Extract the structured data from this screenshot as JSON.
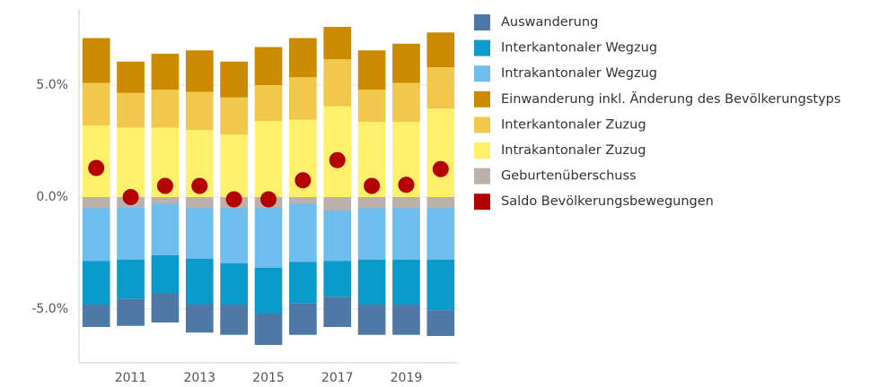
{
  "chart_data": {
    "type": "bar",
    "stacked": true,
    "categories": [
      null,
      "2011",
      null,
      "2013",
      null,
      "2015",
      null,
      "2017",
      null,
      "2019",
      null
    ],
    "ylim": [
      -7.4,
      8.4
    ],
    "yticks": [
      {
        "value": -5,
        "label": "-5.0%"
      },
      {
        "value": 0,
        "label": "0.0%"
      },
      {
        "value": 5,
        "label": "5.0%"
      }
    ],
    "grid": true,
    "legend": "right",
    "series": [
      {
        "name": "Auswanderung",
        "color": "#4e79a7",
        "values": [
          -1.0,
          -1.2,
          -1.3,
          -1.25,
          -1.35,
          -1.4,
          -1.4,
          -1.35,
          -1.35,
          -1.35,
          -1.15
        ]
      },
      {
        "name": "Interkantonaler Wegzug",
        "color": "#0a9bcb",
        "values": [
          -1.95,
          -1.75,
          -1.7,
          -2.05,
          -1.85,
          -2.05,
          -1.85,
          -1.6,
          -2.0,
          -2.0,
          -2.25
        ]
      },
      {
        "name": "Intrakantonaler Wegzug",
        "color": "#6dbdee",
        "values": [
          -2.35,
          -2.35,
          -2.3,
          -2.25,
          -2.45,
          -2.65,
          -2.6,
          -2.25,
          -2.3,
          -2.3,
          -2.3
        ]
      },
      {
        "name": "Einwanderung inkl. Änderung des Bevölkerungstyps",
        "color": "#cc8a00",
        "values": [
          2.0,
          1.4,
          1.6,
          1.85,
          1.6,
          1.7,
          1.75,
          1.45,
          1.75,
          1.75,
          1.55
        ]
      },
      {
        "name": "Interkantonaler Zuzug",
        "color": "#f1c84b",
        "values": [
          1.9,
          1.55,
          1.7,
          1.7,
          1.65,
          1.6,
          1.9,
          2.1,
          1.45,
          1.75,
          1.85
        ]
      },
      {
        "name": "Intrakantonaler Zuzug",
        "color": "#fff06b",
        "values": [
          3.2,
          3.1,
          3.1,
          3.0,
          2.8,
          3.4,
          3.45,
          4.05,
          3.35,
          3.35,
          3.95
        ]
      },
      {
        "name": "Geburtenüberschuss",
        "color": "#bcb0ab",
        "values": [
          -0.5,
          -0.45,
          -0.3,
          -0.5,
          -0.5,
          -0.5,
          -0.3,
          -0.6,
          -0.5,
          -0.5,
          -0.5
        ]
      },
      {
        "name": "Saldo Bevölkerungsbewegungen",
        "type": "scatter",
        "color": "#b40000",
        "values": [
          1.3,
          0.0,
          0.5,
          0.5,
          -0.1,
          -0.1,
          0.75,
          1.65,
          0.5,
          0.55,
          1.25
        ]
      }
    ]
  }
}
